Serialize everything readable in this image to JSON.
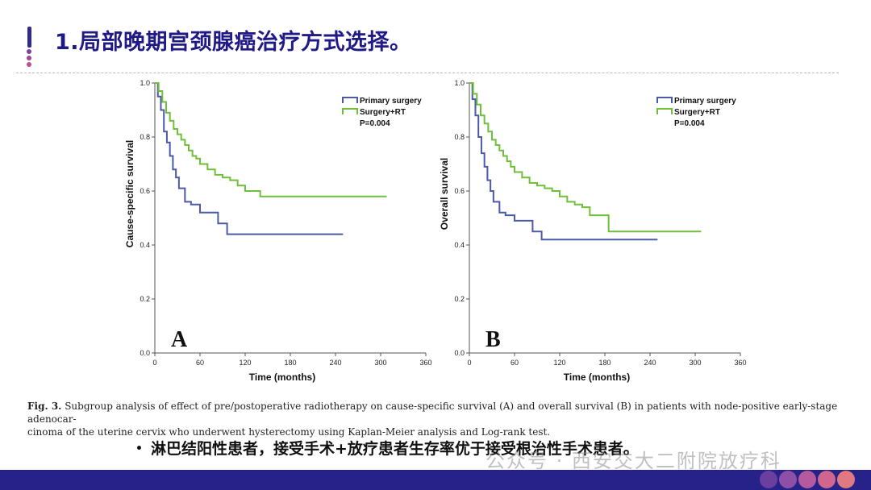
{
  "header": {
    "title": "1.局部晚期宫颈腺癌治疗方式选择。"
  },
  "colors": {
    "accent": "#26228a",
    "primary_surgery": "#4b5aa8",
    "surgery_rt": "#6fbf3a"
  },
  "chart_data": [
    {
      "type": "line",
      "panel_label": "A",
      "xlabel": "Time (months)",
      "ylabel": "Cause-specific survival",
      "xlim": [
        0,
        360
      ],
      "ylim": [
        0,
        1.0
      ],
      "x_ticks": [
        "0",
        "60",
        "120",
        "180",
        "240",
        "300",
        "360"
      ],
      "y_ticks": [
        "0.0",
        "0.2",
        "0.4",
        "0.6",
        "0.8",
        "1.0"
      ],
      "legend": {
        "position": "top-right",
        "p_value": "P=0.004"
      },
      "series": [
        {
          "name": "Primary surgery",
          "step": true,
          "x": [
            0,
            4,
            8,
            12,
            16,
            20,
            24,
            28,
            32,
            40,
            48,
            60,
            72,
            84,
            96,
            110,
            130,
            150,
            200,
            250
          ],
          "y": [
            1.0,
            0.95,
            0.9,
            0.82,
            0.78,
            0.73,
            0.68,
            0.65,
            0.61,
            0.56,
            0.55,
            0.52,
            0.52,
            0.48,
            0.44,
            0.44,
            0.44,
            0.44,
            0.44,
            0.44
          ]
        },
        {
          "name": "Surgery+RT",
          "step": true,
          "x": [
            0,
            5,
            10,
            15,
            20,
            25,
            30,
            35,
            40,
            45,
            50,
            55,
            60,
            70,
            80,
            90,
            100,
            110,
            120,
            140,
            160,
            200,
            250,
            308
          ],
          "y": [
            1.0,
            0.97,
            0.93,
            0.89,
            0.86,
            0.83,
            0.81,
            0.79,
            0.77,
            0.75,
            0.73,
            0.72,
            0.7,
            0.68,
            0.66,
            0.65,
            0.64,
            0.62,
            0.6,
            0.58,
            0.58,
            0.58,
            0.58,
            0.58
          ]
        }
      ]
    },
    {
      "type": "line",
      "panel_label": "B",
      "xlabel": "Time (months)",
      "ylabel": "Overall survival",
      "xlim": [
        0,
        360
      ],
      "ylim": [
        0,
        1.0
      ],
      "x_ticks": [
        "0",
        "60",
        "120",
        "180",
        "240",
        "300",
        "360"
      ],
      "y_ticks": [
        "0.0",
        "0.2",
        "0.4",
        "0.6",
        "0.8",
        "1.0"
      ],
      "legend": {
        "position": "top-right",
        "p_value": "P=0.004"
      },
      "series": [
        {
          "name": "Primary surgery",
          "step": true,
          "x": [
            0,
            4,
            8,
            12,
            16,
            20,
            24,
            28,
            32,
            40,
            48,
            60,
            72,
            84,
            96,
            110,
            130,
            150,
            200,
            250
          ],
          "y": [
            1.0,
            0.94,
            0.88,
            0.8,
            0.74,
            0.69,
            0.64,
            0.6,
            0.56,
            0.52,
            0.51,
            0.49,
            0.49,
            0.45,
            0.42,
            0.42,
            0.42,
            0.42,
            0.42,
            0.42
          ]
        },
        {
          "name": "Surgery+RT",
          "step": true,
          "x": [
            0,
            5,
            10,
            15,
            20,
            25,
            30,
            35,
            40,
            45,
            50,
            55,
            60,
            70,
            80,
            90,
            100,
            110,
            120,
            130,
            140,
            150,
            160,
            185,
            200,
            250,
            308
          ],
          "y": [
            1.0,
            0.96,
            0.92,
            0.88,
            0.85,
            0.82,
            0.79,
            0.77,
            0.75,
            0.73,
            0.71,
            0.69,
            0.67,
            0.65,
            0.63,
            0.62,
            0.61,
            0.6,
            0.58,
            0.56,
            0.55,
            0.54,
            0.51,
            0.45,
            0.45,
            0.45,
            0.45
          ]
        }
      ]
    }
  ],
  "caption": {
    "fig_label": "Fig. 3.",
    "line1": "Subgroup analysis of effect of pre/postoperative radiotherapy on cause-specific survival (A) and overall survival (B) in patients with node-positive early-stage adenocar-",
    "line2": "cinoma of the uterine cervix who underwent hysterectomy using Kaplan-Meier analysis and Log-rank test."
  },
  "bullet": {
    "marker": "•",
    "text": "淋巴结阳性患者，接受手术+放疗患者生存率优于接受根治性手术患者。"
  },
  "watermark": "公众号 · 西安交大二附院放疗科"
}
